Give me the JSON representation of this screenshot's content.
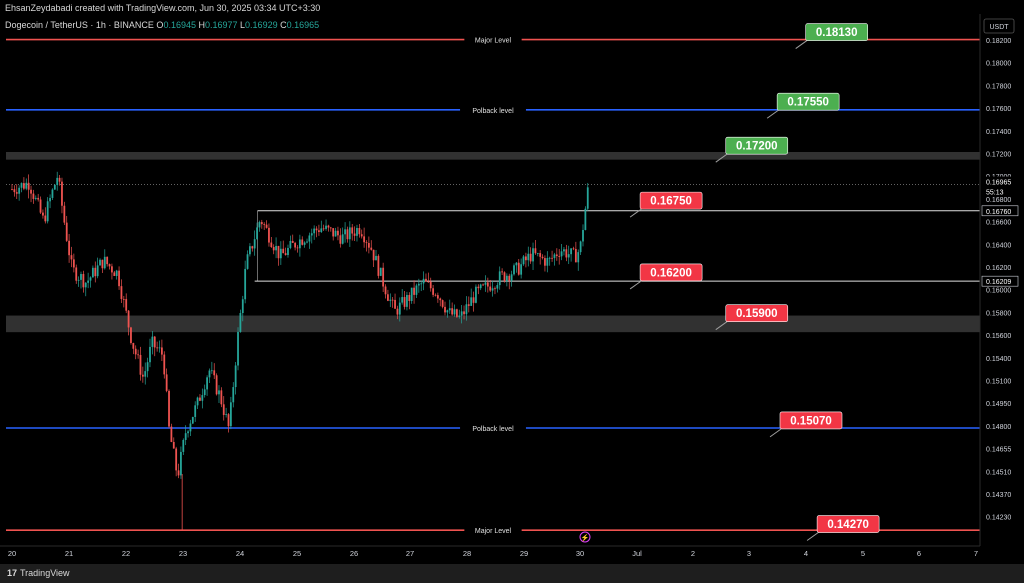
{
  "header": {
    "credit": "EhsanZeydabadi created with TradingView.com, Jun 30, 2025 03:34 UTC+3:30"
  },
  "legend": {
    "symbol": "Dogecoin / TetherUS · 1h · BINANCE",
    "ohlc": [
      {
        "k": "O",
        "v": "0.16945"
      },
      {
        "k": "H",
        "v": "0.16977"
      },
      {
        "k": "L",
        "v": "0.16929"
      },
      {
        "k": "C",
        "v": "0.16965"
      }
    ]
  },
  "footer": {
    "brand_glyph": "17",
    "brand": "TradingView"
  },
  "colors": {
    "up": "#26a69a",
    "down": "#ef5350",
    "red_level": "#ef5350",
    "blue_level": "#2962ff",
    "label_green": "#4caf50",
    "label_red": "#f23645"
  },
  "chart_data": {
    "type": "candlestick",
    "unit": "USDT",
    "x_ticks": [
      "20",
      "21",
      "22",
      "23",
      "24",
      "25",
      "26",
      "27",
      "28",
      "29",
      "30",
      "Jul",
      "2",
      "3",
      "4",
      "5",
      "6",
      "7"
    ],
    "y_ticks": [
      "0.18200",
      "0.18000",
      "0.17800",
      "0.17600",
      "0.17400",
      "0.17200",
      "0.17000",
      "0.16800",
      "0.16600",
      "0.16400",
      "0.16200",
      "0.16000",
      "0.15800",
      "0.15600",
      "0.15400",
      "0.15100",
      "0.14950",
      "0.14800",
      "0.14655",
      "0.14510",
      "0.14370",
      "0.14230"
    ],
    "ylim": [
      0.1416,
      0.183
    ],
    "horizontal_levels": [
      {
        "price": 0.181,
        "label": "Major Level",
        "color": "red"
      },
      {
        "price": 0.1755,
        "label": "Polback level",
        "color": "blue"
      },
      {
        "price": 0.1506,
        "label": "Polback level",
        "color": "blue"
      },
      {
        "price": 0.1426,
        "label": "Major Level",
        "color": "red"
      }
    ],
    "zones": [
      {
        "from": 0.1716,
        "to": 0.1722
      },
      {
        "from": 0.1581,
        "to": 0.1594
      }
    ],
    "white_lines": [
      {
        "price": 0.1676,
        "from_day": 24.3,
        "to_day": "right"
      },
      {
        "price": 0.16209,
        "from_day": 24.25,
        "to_day": "right"
      }
    ],
    "price_tags": [
      "0.16965",
      "55:13",
      "0.16760",
      "0.16209"
    ],
    "callouts": [
      {
        "text": "0.18130",
        "style": "green",
        "day": 3.9,
        "price": 0.18225
      },
      {
        "text": "0.17550",
        "style": "green",
        "day": 3.4,
        "price": 0.1768
      },
      {
        "text": "0.17200",
        "style": "green",
        "day": 2.5,
        "price": 0.17336
      },
      {
        "text": "0.16750",
        "style": "red",
        "day": 1.0,
        "price": 0.16906
      },
      {
        "text": "0.16200",
        "style": "red",
        "day": 1.0,
        "price": 0.16344
      },
      {
        "text": "0.15900",
        "style": "red",
        "day": 2.5,
        "price": 0.16025
      },
      {
        "text": "0.15070",
        "style": "red",
        "day": 3.45,
        "price": 0.15186
      },
      {
        "text": "0.14270",
        "style": "red",
        "day": 4.1,
        "price": 0.14375
      }
    ],
    "path": [
      [
        20.0,
        0.1693
      ],
      [
        20.3,
        0.1698
      ],
      [
        20.55,
        0.1668
      ],
      [
        20.8,
        0.1704
      ],
      [
        20.9,
        0.1672
      ],
      [
        21.05,
        0.163
      ],
      [
        21.3,
        0.162
      ],
      [
        21.6,
        0.1637
      ],
      [
        21.85,
        0.1627
      ],
      [
        22.1,
        0.1574
      ],
      [
        22.3,
        0.1545
      ],
      [
        22.45,
        0.1572
      ],
      [
        22.65,
        0.1563
      ],
      [
        22.75,
        0.1505
      ],
      [
        22.9,
        0.1468
      ],
      [
        23.05,
        0.1505
      ],
      [
        23.25,
        0.1525
      ],
      [
        23.45,
        0.1552
      ],
      [
        23.65,
        0.153
      ],
      [
        23.8,
        0.1505
      ],
      [
        23.95,
        0.1575
      ],
      [
        24.1,
        0.1634
      ],
      [
        24.35,
        0.167
      ],
      [
        24.7,
        0.164
      ],
      [
        25.0,
        0.1652
      ],
      [
        25.4,
        0.1663
      ],
      [
        25.8,
        0.1655
      ],
      [
        26.1,
        0.1663
      ],
      [
        26.3,
        0.1646
      ],
      [
        26.5,
        0.162
      ],
      [
        26.7,
        0.1597
      ],
      [
        26.95,
        0.1608
      ],
      [
        27.2,
        0.162
      ],
      [
        27.45,
        0.1612
      ],
      [
        27.65,
        0.1596
      ],
      [
        27.85,
        0.1592
      ],
      [
        28.1,
        0.161
      ],
      [
        28.3,
        0.1616
      ],
      [
        28.55,
        0.1624
      ],
      [
        28.85,
        0.163
      ],
      [
        29.1,
        0.1642
      ],
      [
        29.4,
        0.1636
      ],
      [
        29.6,
        0.1646
      ],
      [
        29.85,
        0.164
      ],
      [
        29.95,
        0.1646
      ],
      [
        30.03,
        0.1674
      ],
      [
        30.1,
        0.16965
      ]
    ]
  }
}
